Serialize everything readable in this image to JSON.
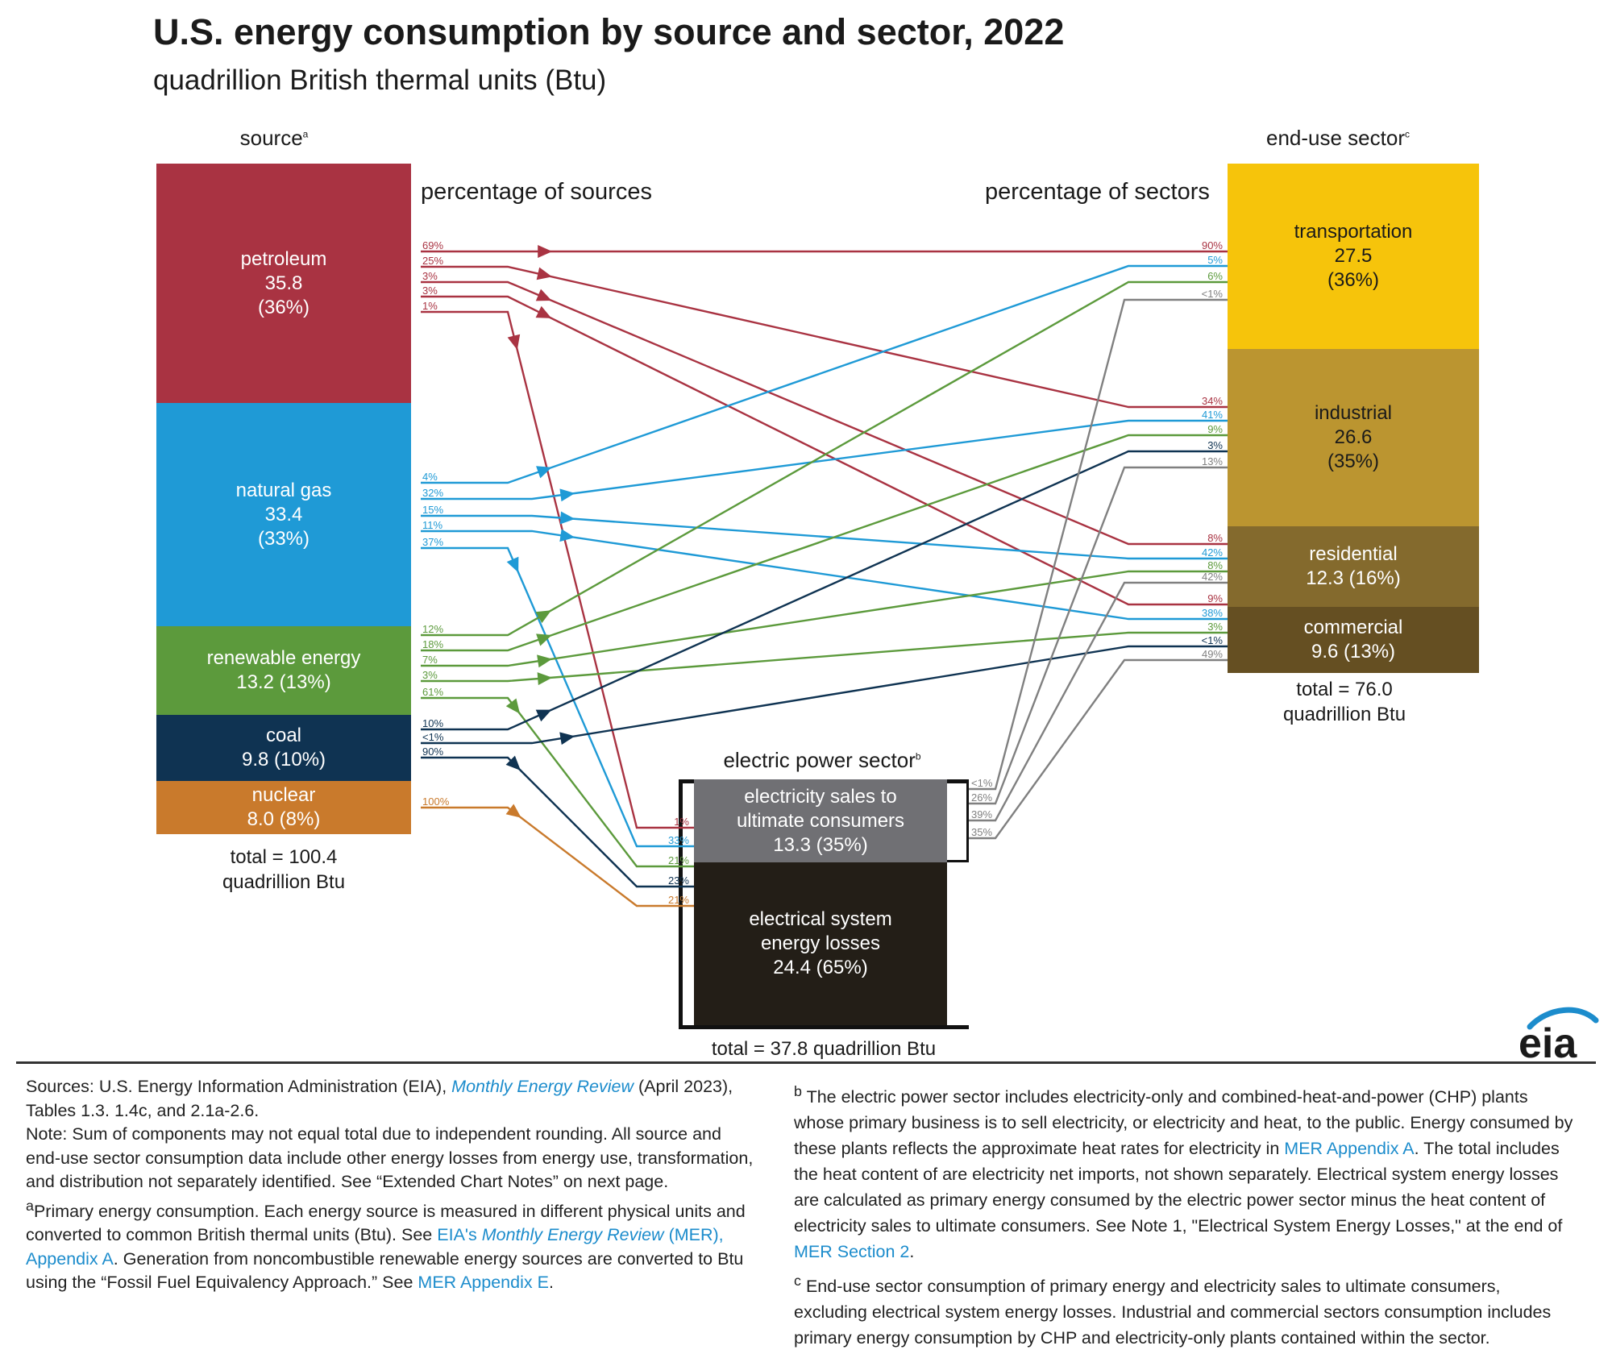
{
  "title": "U.S. energy consumption by source and sector, 2022",
  "subtitle": "quadrillion British thermal units (Btu)",
  "headers": {
    "source": "source",
    "source_sup": "a",
    "pct_sources": "percentage of sources",
    "pct_sectors": "percentage of sectors",
    "enduse": "end-use sector",
    "enduse_sup": "c",
    "electric": "electric power sector",
    "electric_sup": "b"
  },
  "sources": [
    {
      "id": "petroleum",
      "lines": [
        "petroleum",
        "35.8",
        "(36%)"
      ],
      "color": "#a93342"
    },
    {
      "id": "natural-gas",
      "lines": [
        "natural gas",
        "33.4",
        "(33%)"
      ],
      "color": "#1f9ad6"
    },
    {
      "id": "renewable",
      "lines": [
        "renewable energy",
        "13.2 (13%)"
      ],
      "color": "#5c9a3c"
    },
    {
      "id": "coal",
      "lines": [
        "coal",
        "9.8 (10%)"
      ],
      "color": "#0f3352"
    },
    {
      "id": "nuclear",
      "lines": [
        "nuclear",
        "8.0 (8%)"
      ],
      "color": "#c97a2c"
    }
  ],
  "source_total": [
    "total = 100.4",
    "quadrillion Btu"
  ],
  "sectors": [
    {
      "id": "transportation",
      "lines": [
        "transportation",
        "27.5",
        "(36%)"
      ],
      "color": "#f6c40b"
    },
    {
      "id": "industrial",
      "lines": [
        "industrial",
        "26.6",
        "(35%)"
      ],
      "color": "#bb9530"
    },
    {
      "id": "residential",
      "lines": [
        "residential",
        "12.3 (16%)"
      ],
      "color": "#846a2d"
    },
    {
      "id": "commercial",
      "lines": [
        "commercial",
        "9.6 (13%)"
      ],
      "color": "#654f22"
    }
  ],
  "sector_total": [
    "total = 76.0",
    "quadrillion Btu"
  ],
  "electric": {
    "sales": [
      "electricity sales to",
      "ultimate consumers",
      "13.3 (35%)"
    ],
    "losses": [
      "electrical system",
      "energy losses",
      "24.4 (65%)"
    ],
    "total": "total = 37.8 quadrillion Btu",
    "sales_color": "#707074",
    "losses_color": "#231e17"
  },
  "flows": {
    "petroleum": [
      {
        "src_pct": "69%",
        "to": "transportation",
        "dst_pct": "90%"
      },
      {
        "src_pct": "25%",
        "to": "industrial",
        "dst_pct": "34%"
      },
      {
        "src_pct": "3%",
        "to": "residential",
        "dst_pct": "8%"
      },
      {
        "src_pct": "3%",
        "to": "commercial",
        "dst_pct": "9%"
      },
      {
        "src_pct": "1%",
        "to": "electric",
        "dst_pct": "1%"
      }
    ],
    "natural_gas": [
      {
        "src_pct": "4%",
        "to": "transportation",
        "dst_pct": "5%"
      },
      {
        "src_pct": "32%",
        "to": "industrial",
        "dst_pct": "41%"
      },
      {
        "src_pct": "15%",
        "to": "residential",
        "dst_pct": "42%"
      },
      {
        "src_pct": "11%",
        "to": "commercial",
        "dst_pct": "38%"
      },
      {
        "src_pct": "37%",
        "to": "electric",
        "dst_pct": "33%"
      }
    ],
    "renewable": [
      {
        "src_pct": "12%",
        "to": "transportation",
        "dst_pct": "6%"
      },
      {
        "src_pct": "18%",
        "to": "industrial",
        "dst_pct": "9%"
      },
      {
        "src_pct": "7%",
        "to": "residential",
        "dst_pct": "8%"
      },
      {
        "src_pct": "3%",
        "to": "commercial",
        "dst_pct": "3%"
      },
      {
        "src_pct": "61%",
        "to": "electric",
        "dst_pct": "21%"
      }
    ],
    "coal": [
      {
        "src_pct": "10%",
        "to": "industrial",
        "dst_pct": "3%"
      },
      {
        "src_pct": "<1%",
        "to": "commercial",
        "dst_pct": "<1%"
      },
      {
        "src_pct": "90%",
        "to": "electric",
        "dst_pct": "23%"
      }
    ],
    "nuclear": [
      {
        "src_pct": "100%",
        "to": "electric",
        "dst_pct": "21%"
      }
    ],
    "electricity": [
      {
        "src_pct": "<1%",
        "to": "transportation",
        "dst_pct": "<1%"
      },
      {
        "src_pct": "26%",
        "to": "industrial",
        "dst_pct": "13%"
      },
      {
        "src_pct": "39%",
        "to": "residential",
        "dst_pct": "42%"
      },
      {
        "src_pct": "35%",
        "to": "commercial",
        "dst_pct": "49%"
      }
    ]
  },
  "logo": "eia",
  "footnotes": {
    "left": {
      "sources_prefix": "Sources: U.S. Energy Information Administration (EIA), ",
      "sources_link": "Monthly Energy Review",
      "sources_suffix": " (April 2023), Tables 1.3. 1.4c, and 2.1a-2.6.",
      "note": "Note: Sum of components may not equal total due to independent rounding. All source and end-use sector consumption data include other energy losses from energy use, transformation, and distribution not separately identified. See “Extended Chart Notes” on next page.",
      "a_marker": "a",
      "a_text1": "Primary energy consumption. Each energy source is measured in different physical units and converted to common British thermal units (Btu). See ",
      "a_link1": "EIA's ",
      "a_link1_ital": "Monthly Energy Review",
      "a_link1_tail": " (MER), Appendix A",
      "a_text2": ". Generation from noncombustible renewable energy sources are converted to Btu using the “Fossil Fuel Equivalency Approach.” See ",
      "a_link2": "MER Appendix E",
      "a_text3": "."
    },
    "right": {
      "b_marker": "b",
      "b_text1": "The electric power sector includes electricity-only and combined-heat-and-power (CHP) plants whose primary business is to sell electricity, or electricity and heat, to the public. Energy consumed by these plants reflects the approximate heat rates for electricity in ",
      "b_link1": "MER Appendix A",
      "b_text2": ". The total includes the heat content of are electricity net imports, not shown separately. Electrical system energy losses are calculated as primary energy consumed by the electric power sector minus the heat content of electricity sales to ultimate consumers. See Note 1, \"Electrical System Energy Losses,\" at the end of ",
      "b_link2": "MER Section 2",
      "b_text3": ".",
      "c_marker": "c",
      "c_text": "End-use sector consumption of primary energy and electricity sales to ultimate consumers, excluding electrical system energy losses. Industrial and commercial sectors consumption includes primary energy consumption by CHP and electricity-only plants contained within the sector."
    }
  }
}
